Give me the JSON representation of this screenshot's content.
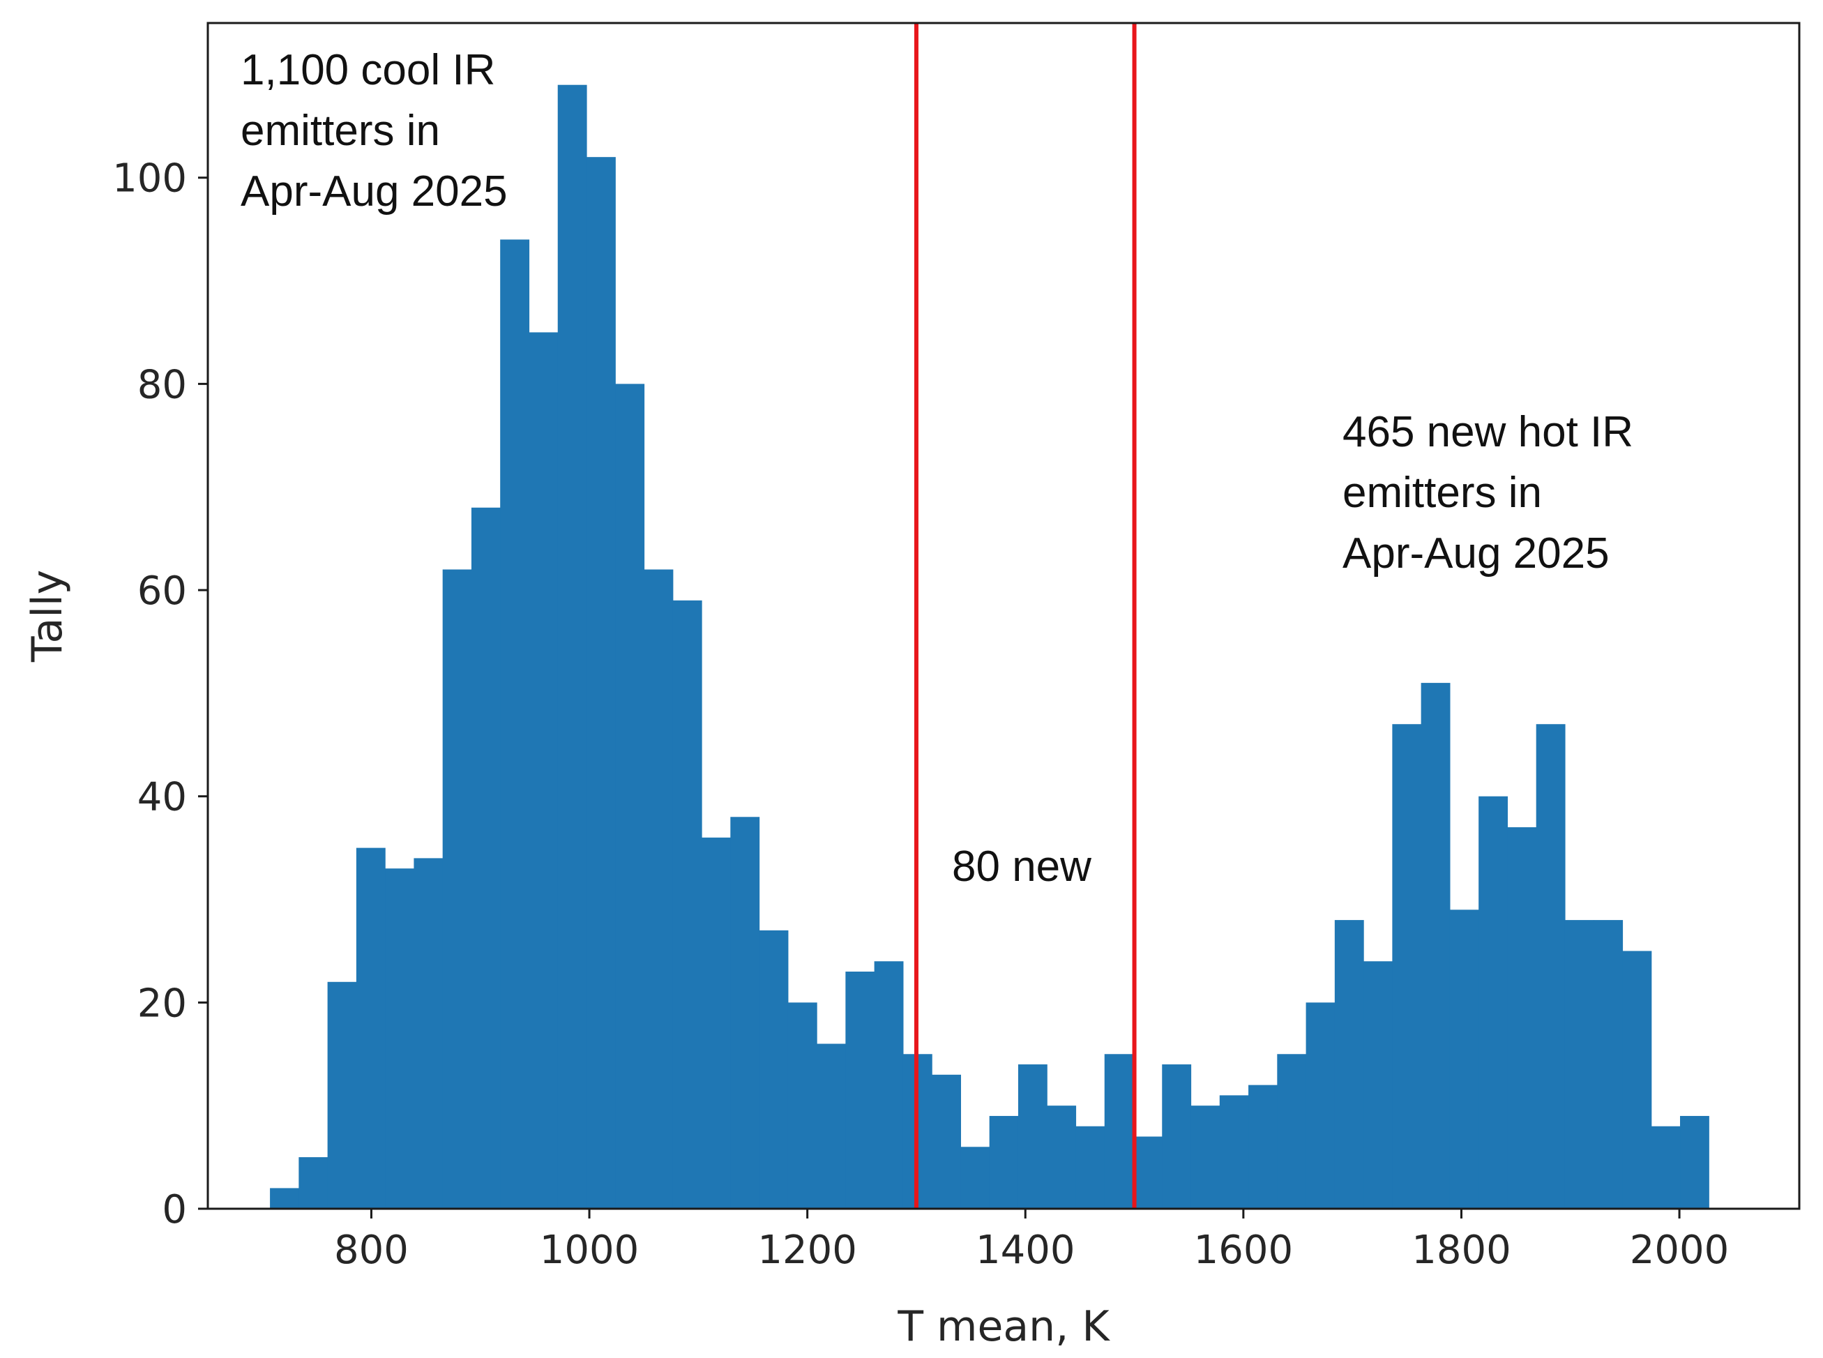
{
  "chart_data": {
    "type": "bar",
    "subtype": "histogram",
    "title": "",
    "xlabel": "T mean, K",
    "ylabel": "Tally",
    "xlim": [
      650,
      2110
    ],
    "ylim": [
      0,
      115
    ],
    "grid": false,
    "bar_color": "#1f77b4",
    "bin_width": 26.4,
    "bin_start": 707,
    "counts": [
      2,
      5,
      22,
      35,
      33,
      34,
      62,
      68,
      94,
      85,
      109,
      102,
      80,
      62,
      59,
      36,
      38,
      27,
      20,
      16,
      23,
      24,
      15,
      13,
      6,
      9,
      14,
      10,
      8,
      15,
      7,
      14,
      10,
      11,
      12,
      15,
      20,
      28,
      24,
      47,
      51,
      29,
      40,
      37,
      47,
      28,
      28,
      25,
      8,
      9
    ],
    "x_ticks": [
      "800",
      "1000",
      "1200",
      "1400",
      "1600",
      "1800",
      "2000"
    ],
    "x_tick_values": [
      800,
      1000,
      1200,
      1400,
      1600,
      1800,
      2000
    ],
    "y_ticks": [
      "0",
      "20",
      "40",
      "60",
      "80",
      "100"
    ],
    "y_tick_values": [
      0,
      20,
      40,
      60,
      80,
      100
    ],
    "vertical_lines": [
      {
        "x": 1300,
        "color": "#e8161b"
      },
      {
        "x": 1500,
        "color": "#e8161b"
      }
    ],
    "annotations": [
      {
        "key": "cool",
        "lines": [
          "1,100 cool IR",
          "emitters  in",
          "Apr-Aug 2025"
        ]
      },
      {
        "key": "mid",
        "lines": [
          "80 new"
        ]
      },
      {
        "key": "hot",
        "lines": [
          "465 new hot IR",
          "emitters  in",
          "Apr-Aug 2025"
        ]
      }
    ]
  }
}
